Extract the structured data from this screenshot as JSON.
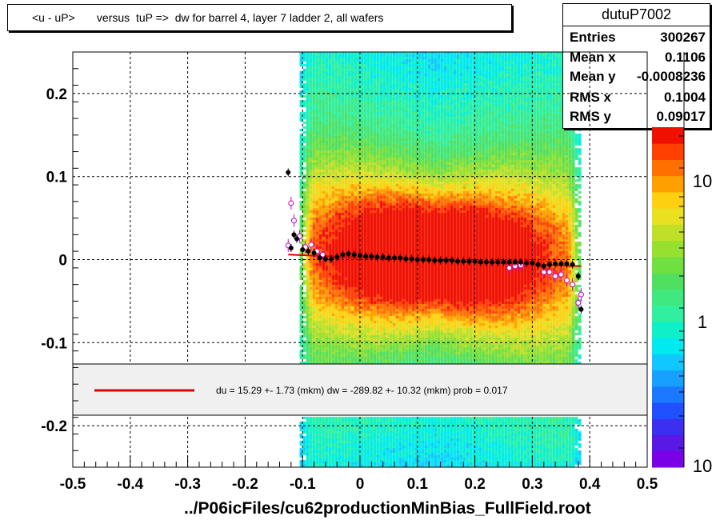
{
  "title": "<u - uP>       versus  tuP =>  dw for barrel 4, layer 7 ladder 2, all wafers",
  "xlabel": "../P06icFiles/cu62productionMinBias_FullField.root",
  "stats": {
    "name": "dutuP7002",
    "rows": [
      {
        "key": "Entries",
        "value": "300267"
      },
      {
        "key": "Mean x",
        "value": "0.1106"
      },
      {
        "key": "Mean y",
        "value": "-0.0008236"
      },
      {
        "key": "RMS x",
        "value": "0.1004"
      },
      {
        "key": "RMS y",
        "value": "0.09017"
      }
    ]
  },
  "legend": {
    "fit_text": "du =   15.29 +-  1.73 (mkm) dw = -289.82 +- 10.32 (mkm) prob = 0.017",
    "fit_color": "#dd0000"
  },
  "chart_data": {
    "type": "heatmap",
    "title": "<u - uP>       versus  tuP =>  dw for barrel 4, layer 7 ladder 2, all wafers",
    "xlabel": "../P06icFiles/cu62productionMinBias_FullField.root",
    "ylabel": "",
    "xlim": [
      -0.5,
      0.5
    ],
    "ylim": [
      -0.25,
      0.25
    ],
    "x_ticks": [
      "-0.5",
      "-0.4",
      "-0.3",
      "-0.2",
      "-0.1",
      "0",
      "0.1",
      "0.2",
      "0.3",
      "0.4",
      "0.5"
    ],
    "y_ticks": [
      "-0.2",
      "-0.1",
      "0",
      "0.1",
      "0.2"
    ],
    "colorbar_ticks": [
      "1",
      "10",
      "10"
    ],
    "grid": true,
    "fill_x_range": [
      -0.105,
      0.38
    ],
    "fit_line": {
      "x": [
        -0.125,
        0.385
      ],
      "y": [
        0.006,
        -0.008
      ]
    },
    "black_points": {
      "x": [
        -0.125,
        -0.12,
        -0.115,
        -0.11,
        -0.1,
        -0.09,
        -0.08,
        -0.07,
        -0.06,
        -0.05,
        -0.04,
        -0.03,
        -0.02,
        -0.01,
        0.0,
        0.01,
        0.02,
        0.03,
        0.04,
        0.05,
        0.06,
        0.07,
        0.08,
        0.09,
        0.1,
        0.11,
        0.12,
        0.13,
        0.14,
        0.15,
        0.16,
        0.17,
        0.18,
        0.19,
        0.2,
        0.21,
        0.22,
        0.23,
        0.24,
        0.25,
        0.26,
        0.27,
        0.28,
        0.29,
        0.3,
        0.31,
        0.32,
        0.33,
        0.34,
        0.35,
        0.36,
        0.37,
        0.38,
        0.385
      ],
      "y": [
        0.105,
        0.014,
        0.03,
        0.025,
        0.012,
        0.01,
        0.008,
        0.002,
        0.001,
        0.001,
        0.003,
        0.006,
        0.007,
        0.006,
        0.005,
        0.004,
        0.004,
        0.003,
        0.003,
        0.002,
        0.002,
        0.002,
        0.001,
        0.001,
        0.0,
        0.0,
        0.0,
        -0.001,
        -0.001,
        -0.001,
        -0.001,
        -0.002,
        -0.002,
        -0.002,
        -0.002,
        -0.003,
        -0.003,
        -0.003,
        -0.003,
        -0.003,
        -0.003,
        -0.003,
        -0.003,
        -0.004,
        -0.004,
        -0.006,
        -0.008,
        -0.006,
        -0.005,
        -0.005,
        -0.005,
        -0.006,
        -0.02,
        -0.06
      ]
    },
    "magenta_points": {
      "x": [
        -0.125,
        -0.12,
        -0.115,
        -0.105,
        -0.095,
        -0.085,
        -0.075,
        -0.065,
        0.26,
        0.27,
        0.28,
        0.32,
        0.33,
        0.34,
        0.35,
        0.36,
        0.37,
        0.38,
        0.385
      ],
      "y": [
        0.017,
        0.068,
        0.047,
        0.028,
        0.015,
        0.018,
        0.01,
        0.006,
        -0.01,
        -0.008,
        -0.007,
        -0.015,
        -0.015,
        -0.02,
        -0.018,
        -0.025,
        -0.03,
        -0.052,
        -0.042
      ]
    }
  }
}
